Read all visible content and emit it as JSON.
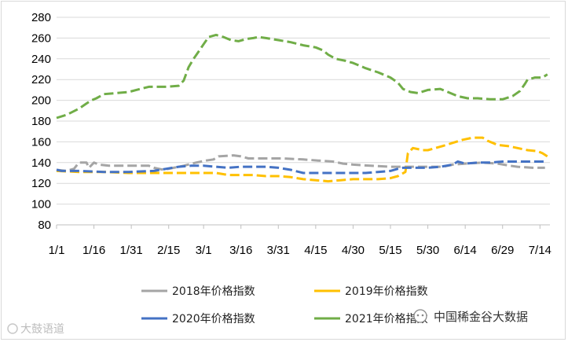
{
  "chart_data": {
    "type": "line",
    "title": "",
    "xlabel": "",
    "ylabel": "",
    "ylim": [
      80,
      280
    ],
    "yticks": [
      80,
      100,
      120,
      140,
      160,
      180,
      200,
      220,
      240,
      260,
      280
    ],
    "xlim": [
      1,
      199
    ],
    "xticks": [
      {
        "label": "1/1",
        "day": 1
      },
      {
        "label": "1/16",
        "day": 16
      },
      {
        "label": "1/31",
        "day": 31
      },
      {
        "label": "2/15",
        "day": 46
      },
      {
        "label": "3/1",
        "day": 60
      },
      {
        "label": "3/16",
        "day": 75
      },
      {
        "label": "3/31",
        "day": 90
      },
      {
        "label": "4/15",
        "day": 105
      },
      {
        "label": "4/30",
        "day": 120
      },
      {
        "label": "5/15",
        "day": 135
      },
      {
        "label": "5/30",
        "day": 150
      },
      {
        "label": "6/14",
        "day": 165
      },
      {
        "label": "6/29",
        "day": 180
      },
      {
        "label": "7/14",
        "day": 195
      }
    ],
    "grid": "horizontal",
    "legend_position": "bottom",
    "series": [
      {
        "name": "2018年价格指数",
        "color": "#a5a5a5",
        "points": [
          [
            1,
            133
          ],
          [
            5,
            132
          ],
          [
            8,
            134
          ],
          [
            10,
            140
          ],
          [
            13,
            140
          ],
          [
            14,
            135
          ],
          [
            16,
            140
          ],
          [
            18,
            138
          ],
          [
            22,
            137
          ],
          [
            30,
            137
          ],
          [
            38,
            137
          ],
          [
            40,
            135
          ],
          [
            44,
            133
          ],
          [
            48,
            135
          ],
          [
            52,
            137
          ],
          [
            57,
            140
          ],
          [
            61,
            142
          ],
          [
            64,
            143
          ],
          [
            66,
            146
          ],
          [
            72,
            147
          ],
          [
            75,
            146
          ],
          [
            78,
            144
          ],
          [
            85,
            144
          ],
          [
            92,
            144
          ],
          [
            100,
            143
          ],
          [
            106,
            142
          ],
          [
            112,
            141
          ],
          [
            116,
            139
          ],
          [
            120,
            138
          ],
          [
            127,
            137
          ],
          [
            135,
            136
          ],
          [
            142,
            136
          ],
          [
            150,
            136
          ],
          [
            156,
            136
          ],
          [
            160,
            138
          ],
          [
            165,
            139
          ],
          [
            172,
            140
          ],
          [
            178,
            139
          ],
          [
            183,
            137
          ],
          [
            186,
            136
          ],
          [
            192,
            135
          ],
          [
            197,
            135
          ]
        ]
      },
      {
        "name": "2019年价格指数",
        "color": "#ffc000",
        "points": [
          [
            1,
            132
          ],
          [
            10,
            131
          ],
          [
            20,
            131
          ],
          [
            30,
            130
          ],
          [
            40,
            130
          ],
          [
            50,
            130
          ],
          [
            60,
            130
          ],
          [
            65,
            130
          ],
          [
            70,
            128
          ],
          [
            75,
            128
          ],
          [
            80,
            128
          ],
          [
            85,
            127
          ],
          [
            90,
            127
          ],
          [
            95,
            126
          ],
          [
            100,
            124
          ],
          [
            105,
            123
          ],
          [
            110,
            122
          ],
          [
            115,
            123
          ],
          [
            120,
            124
          ],
          [
            125,
            124
          ],
          [
            130,
            124
          ],
          [
            135,
            125
          ],
          [
            138,
            127
          ],
          [
            141,
            131
          ],
          [
            142,
            149
          ],
          [
            144,
            154
          ],
          [
            146,
            153
          ],
          [
            148,
            152
          ],
          [
            150,
            152
          ],
          [
            153,
            154
          ],
          [
            156,
            156
          ],
          [
            160,
            159
          ],
          [
            164,
            162
          ],
          [
            168,
            164
          ],
          [
            172,
            164
          ],
          [
            174,
            161
          ],
          [
            176,
            159
          ],
          [
            178,
            157
          ],
          [
            182,
            156
          ],
          [
            186,
            154
          ],
          [
            190,
            152
          ],
          [
            194,
            151
          ],
          [
            196,
            149
          ],
          [
            198,
            146
          ]
        ]
      },
      {
        "name": "2020年价格指数",
        "color": "#4472c4",
        "points": [
          [
            1,
            133
          ],
          [
            3,
            132
          ],
          [
            10,
            132
          ],
          [
            20,
            131
          ],
          [
            30,
            131
          ],
          [
            40,
            132
          ],
          [
            45,
            134
          ],
          [
            50,
            136
          ],
          [
            55,
            137
          ],
          [
            60,
            137
          ],
          [
            65,
            136
          ],
          [
            70,
            135
          ],
          [
            75,
            136
          ],
          [
            80,
            136
          ],
          [
            85,
            136
          ],
          [
            90,
            135
          ],
          [
            95,
            133
          ],
          [
            100,
            130
          ],
          [
            105,
            130
          ],
          [
            110,
            130
          ],
          [
            115,
            130
          ],
          [
            120,
            130
          ],
          [
            125,
            130
          ],
          [
            130,
            131
          ],
          [
            135,
            132
          ],
          [
            138,
            134
          ],
          [
            140,
            135
          ],
          [
            145,
            135
          ],
          [
            150,
            135
          ],
          [
            155,
            136
          ],
          [
            160,
            138
          ],
          [
            162,
            141
          ],
          [
            165,
            139
          ],
          [
            170,
            140
          ],
          [
            175,
            140
          ],
          [
            180,
            141
          ],
          [
            185,
            141
          ],
          [
            190,
            141
          ],
          [
            195,
            141
          ],
          [
            198,
            141
          ]
        ]
      },
      {
        "name": "2021年价格指数",
        "color": "#70ad47",
        "points": [
          [
            1,
            183
          ],
          [
            5,
            186
          ],
          [
            10,
            192
          ],
          [
            13,
            197
          ],
          [
            15,
            200
          ],
          [
            17,
            202
          ],
          [
            20,
            206
          ],
          [
            25,
            207
          ],
          [
            30,
            208
          ],
          [
            33,
            210
          ],
          [
            38,
            213
          ],
          [
            45,
            213
          ],
          [
            50,
            214
          ],
          [
            52,
            219
          ],
          [
            54,
            232
          ],
          [
            56,
            240
          ],
          [
            58,
            247
          ],
          [
            60,
            254
          ],
          [
            62,
            261
          ],
          [
            65,
            263
          ],
          [
            68,
            261
          ],
          [
            71,
            258
          ],
          [
            74,
            257
          ],
          [
            77,
            259
          ],
          [
            80,
            260
          ],
          [
            82,
            261
          ],
          [
            85,
            260
          ],
          [
            90,
            258
          ],
          [
            95,
            256
          ],
          [
            100,
            253
          ],
          [
            105,
            251
          ],
          [
            108,
            248
          ],
          [
            110,
            244
          ],
          [
            113,
            240
          ],
          [
            117,
            238
          ],
          [
            120,
            236
          ],
          [
            125,
            231
          ],
          [
            130,
            227
          ],
          [
            135,
            222
          ],
          [
            138,
            217
          ],
          [
            140,
            211
          ],
          [
            143,
            208
          ],
          [
            146,
            207
          ],
          [
            150,
            210
          ],
          [
            155,
            211
          ],
          [
            158,
            208
          ],
          [
            162,
            204
          ],
          [
            166,
            202
          ],
          [
            170,
            202
          ],
          [
            175,
            201
          ],
          [
            180,
            201
          ],
          [
            184,
            204
          ],
          [
            187,
            209
          ],
          [
            189,
            216
          ],
          [
            190,
            220
          ],
          [
            193,
            222
          ],
          [
            196,
            222
          ],
          [
            198,
            225
          ]
        ]
      }
    ]
  },
  "legend": {
    "items": [
      {
        "label": "2018年价格指数",
        "color": "#a5a5a5"
      },
      {
        "label": "2019年价格指数",
        "color": "#ffc000"
      },
      {
        "label": "2020年价格指数",
        "color": "#4472c4"
      },
      {
        "label": "2021年价格指数",
        "color": "#70ad47"
      }
    ]
  },
  "watermarks": {
    "left": "大鼓语道",
    "right": "中国稀金谷大数据"
  }
}
